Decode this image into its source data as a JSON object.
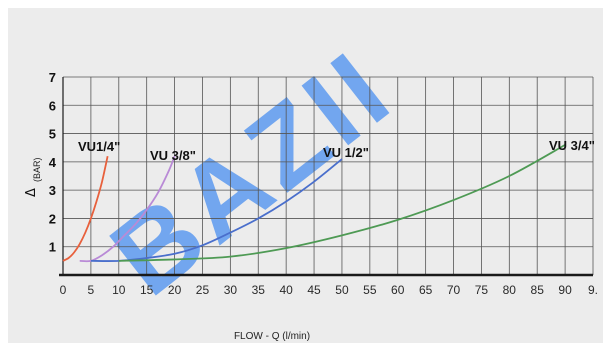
{
  "chart_data": {
    "type": "line",
    "xlabel": "FLOW - Q (l/min)",
    "ylabel_symbol": "Δ",
    "ylabel_unit": "(BAR)",
    "xlim": [
      0,
      95
    ],
    "ylim": [
      0,
      7
    ],
    "xticks": [
      "0",
      "5",
      "10",
      "15",
      "20",
      "25",
      "30",
      "35",
      "40",
      "45",
      "50",
      "55",
      "60",
      "65",
      "70",
      "75",
      "80",
      "85",
      "90",
      "9."
    ],
    "yticks": [
      "1",
      "2",
      "3",
      "4",
      "5",
      "6",
      "7"
    ],
    "grid": true,
    "series": [
      {
        "name": "VU1/4\"",
        "color": "#e8603c",
        "x": [
          0,
          1,
          2,
          3,
          4,
          5,
          6,
          7,
          8
        ],
        "y": [
          0.5,
          0.6,
          0.8,
          1.1,
          1.5,
          2.0,
          2.6,
          3.3,
          4.2
        ]
      },
      {
        "name": "VU 3/8\"",
        "color": "#b98ad6",
        "x": [
          3,
          5,
          7,
          9,
          11,
          13,
          15,
          17,
          19,
          20
        ],
        "y": [
          0.5,
          0.5,
          0.7,
          1.0,
          1.4,
          1.8,
          2.3,
          2.9,
          3.7,
          4.2
        ]
      },
      {
        "name": "VU 1/2\"",
        "color": "#4a6fcc",
        "x": [
          5,
          10,
          15,
          20,
          25,
          30,
          35,
          40,
          45,
          50
        ],
        "y": [
          0.5,
          0.5,
          0.6,
          0.75,
          1.05,
          1.5,
          2.0,
          2.6,
          3.3,
          4.1
        ]
      },
      {
        "name": "VU 3/4\"",
        "color": "#4e9a54",
        "x": [
          10,
          20,
          30,
          40,
          50,
          60,
          70,
          80,
          90
        ],
        "y": [
          0.5,
          0.55,
          0.65,
          0.95,
          1.4,
          1.95,
          2.65,
          3.5,
          4.6
        ]
      }
    ],
    "annotations": [
      "VU1/4\"",
      "VU 3/8\"",
      "VU 1/2\"",
      "VU 3/4\""
    ]
  },
  "watermark_text": "BAZII",
  "watermark_color": "#4a8ff0"
}
